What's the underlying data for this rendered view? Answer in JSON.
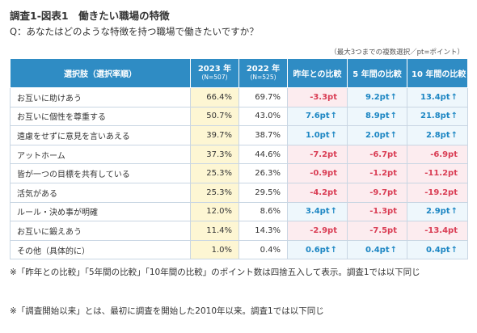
{
  "title": "調査1-図表1　働きたい職場の特徴",
  "question": "Q：あなたはどのような特徴を持つ職場で働きたいですか？",
  "note_top": "（最大3つまでの複数選択／pt=ポイント）",
  "colors": {
    "header_bg": "#2f8cc4",
    "up": "#1c86c3",
    "down": "#d93d54",
    "y2023_bg": "#fdf6d3"
  },
  "chart_data": {
    "type": "table",
    "headers": {
      "choice": "選択肢（選択率順）",
      "y2023": "2023 年",
      "y2023_n": "(N=507)",
      "y2022": "2022 年",
      "y2022_n": "(N=525)",
      "yoy": "昨年との比較",
      "five": "5 年間の比較",
      "ten": "10 年間の比較"
    },
    "rows": [
      {
        "label": "お互いに助けあう",
        "y2023": "66.4%",
        "y2022": "69.7%",
        "yoy": "-3.3pt",
        "five": "9.2pt",
        "ten": "13.4pt"
      },
      {
        "label": "お互いに個性を尊重する",
        "y2023": "50.7%",
        "y2022": "43.0%",
        "yoy": "7.6pt",
        "five": "8.9pt",
        "ten": "21.8pt"
      },
      {
        "label": "遠慮をせずに意見を言いあえる",
        "y2023": "39.7%",
        "y2022": "38.7%",
        "yoy": "1.0pt",
        "five": "2.0pt",
        "ten": "2.8pt"
      },
      {
        "label": "アットホーム",
        "y2023": "37.3%",
        "y2022": "44.6%",
        "yoy": "-7.2pt",
        "five": "-6.7pt",
        "ten": "-6.9pt"
      },
      {
        "label": "皆が一つの目標を共有している",
        "y2023": "25.3%",
        "y2022": "26.3%",
        "yoy": "-0.9pt",
        "five": "-1.2pt",
        "ten": "-11.2pt"
      },
      {
        "label": "活気がある",
        "y2023": "25.3%",
        "y2022": "29.5%",
        "yoy": "-4.2pt",
        "five": "-9.7pt",
        "ten": "-19.2pt"
      },
      {
        "label": "ルール・決め事が明確",
        "y2023": "12.0%",
        "y2022": "8.6%",
        "yoy": "3.4pt",
        "five": "-1.3pt",
        "ten": "2.9pt"
      },
      {
        "label": "お互いに鍛えあう",
        "y2023": "11.4%",
        "y2022": "14.3%",
        "yoy": "-2.9pt",
        "five": "-7.5pt",
        "ten": "-13.4pt"
      },
      {
        "label": "その他（具体的に）",
        "y2023": "1.0%",
        "y2022": "0.4%",
        "yoy": "0.6pt",
        "five": "0.4pt",
        "ten": "0.4pt"
      }
    ]
  },
  "footnote_1": "※「昨年との比較」「5年間の比較」「10年間の比較」のポイント数は四捨五入して表示。調査1では以下同じ",
  "footnote_2": "※「調査開始以来」とは、最初に調査を開始した2010年以来。調査1では以下同じ"
}
